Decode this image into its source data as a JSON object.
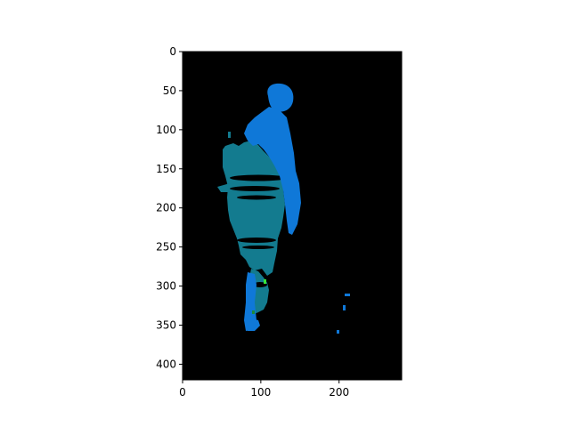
{
  "chart_data": {
    "type": "heatmap",
    "title": "",
    "xlabel": "",
    "ylabel": "",
    "image_width": 280,
    "image_height": 420,
    "xlim": [
      0,
      280
    ],
    "ylim": [
      420,
      0
    ],
    "x_ticks": [
      0,
      100,
      200
    ],
    "y_ticks": [
      0,
      50,
      100,
      150,
      200,
      250,
      300,
      350,
      400
    ],
    "grid": false,
    "background_color": "#000000",
    "colors": {
      "person_region": "#0f78d8",
      "bicycle_region": "#137b8f",
      "highlight": "#39e639",
      "highlight_dark": "#1c8a3a"
    }
  }
}
